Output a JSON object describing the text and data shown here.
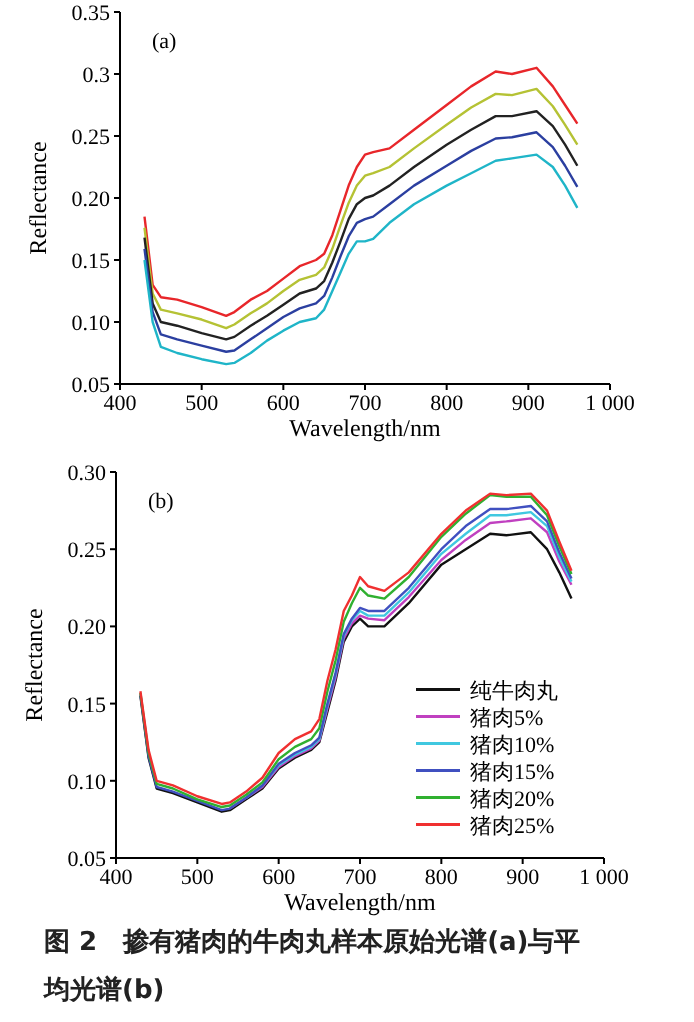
{
  "chart_data": [
    {
      "type": "line",
      "title": "(a)",
      "xlabel": "Wavelength/nm",
      "ylabel": "Reflectance",
      "xlim": [
        400,
        1000
      ],
      "ylim": [
        0.05,
        0.35
      ],
      "xticks": [
        400,
        500,
        600,
        700,
        800,
        900,
        {
          "value": 1000,
          "label": "1 000"
        }
      ],
      "yticks": [
        0.05,
        {
          "value": 0.1,
          "label": "0.10"
        },
        0.15,
        {
          "value": 0.2,
          "label": "0.20"
        },
        0.25,
        0.3,
        0.35
      ],
      "x": [
        430,
        440,
        450,
        470,
        500,
        530,
        540,
        560,
        580,
        600,
        620,
        640,
        650,
        660,
        670,
        680,
        690,
        700,
        710,
        730,
        760,
        800,
        830,
        860,
        880,
        910,
        930,
        945,
        960
      ],
      "series": [
        {
          "color": "#e8262a",
          "values": [
            0.185,
            0.13,
            0.12,
            0.118,
            0.112,
            0.105,
            0.108,
            0.118,
            0.125,
            0.135,
            0.145,
            0.15,
            0.155,
            0.17,
            0.19,
            0.21,
            0.225,
            0.235,
            0.237,
            0.24,
            0.255,
            0.275,
            0.29,
            0.302,
            0.3,
            0.305,
            0.29,
            0.275,
            0.26
          ]
        },
        {
          "color": "#b5c234",
          "values": [
            0.176,
            0.123,
            0.11,
            0.107,
            0.102,
            0.095,
            0.098,
            0.107,
            0.115,
            0.125,
            0.134,
            0.138,
            0.144,
            0.159,
            0.178,
            0.196,
            0.21,
            0.218,
            0.22,
            0.225,
            0.24,
            0.259,
            0.273,
            0.284,
            0.283,
            0.288,
            0.274,
            0.259,
            0.243
          ]
        },
        {
          "color": "#222222",
          "values": [
            0.168,
            0.115,
            0.1,
            0.097,
            0.091,
            0.086,
            0.088,
            0.097,
            0.105,
            0.114,
            0.123,
            0.127,
            0.133,
            0.148,
            0.165,
            0.183,
            0.195,
            0.2,
            0.202,
            0.21,
            0.225,
            0.243,
            0.255,
            0.266,
            0.266,
            0.27,
            0.258,
            0.243,
            0.226
          ]
        },
        {
          "color": "#2b3fa0",
          "values": [
            0.159,
            0.108,
            0.09,
            0.086,
            0.081,
            0.076,
            0.077,
            0.086,
            0.095,
            0.104,
            0.111,
            0.115,
            0.121,
            0.136,
            0.153,
            0.169,
            0.18,
            0.183,
            0.185,
            0.195,
            0.21,
            0.226,
            0.238,
            0.248,
            0.249,
            0.253,
            0.241,
            0.226,
            0.209
          ]
        },
        {
          "color": "#1fb5c8",
          "values": [
            0.15,
            0.1,
            0.08,
            0.075,
            0.07,
            0.066,
            0.067,
            0.075,
            0.085,
            0.093,
            0.1,
            0.103,
            0.11,
            0.125,
            0.14,
            0.155,
            0.165,
            0.165,
            0.167,
            0.18,
            0.195,
            0.21,
            0.22,
            0.23,
            0.232,
            0.235,
            0.225,
            0.21,
            0.192
          ]
        }
      ]
    },
    {
      "type": "line",
      "title": "(b)",
      "xlabel": "Wavelength/nm",
      "ylabel": "Reflectance",
      "xlim": [
        400,
        1000
      ],
      "ylim": [
        0.05,
        0.3
      ],
      "legend": "bottom right",
      "xticks": [
        400,
        500,
        600,
        700,
        800,
        900,
        {
          "value": 1000,
          "label": "1 000"
        }
      ],
      "yticks": [
        0.05,
        {
          "value": 0.1,
          "label": "0.10"
        },
        0.15,
        {
          "value": 0.2,
          "label": "0.20"
        },
        0.25,
        {
          "value": 0.3,
          "label": "0.30"
        }
      ],
      "x": [
        430,
        440,
        450,
        470,
        500,
        530,
        540,
        560,
        580,
        600,
        620,
        640,
        650,
        660,
        670,
        680,
        690,
        700,
        710,
        730,
        760,
        800,
        830,
        860,
        880,
        910,
        930,
        945,
        960
      ],
      "series": [
        {
          "name": "纯牛肉丸",
          "color": "#111111",
          "values": [
            0.155,
            0.115,
            0.095,
            0.092,
            0.086,
            0.08,
            0.081,
            0.088,
            0.095,
            0.108,
            0.115,
            0.12,
            0.125,
            0.145,
            0.165,
            0.19,
            0.2,
            0.205,
            0.2,
            0.2,
            0.215,
            0.24,
            0.25,
            0.26,
            0.259,
            0.261,
            0.25,
            0.235,
            0.218
          ]
        },
        {
          "name": "猪肉5%",
          "color": "#c040c0",
          "values": [
            null,
            null,
            null,
            null,
            null,
            null,
            0.082,
            0.089,
            0.096,
            0.109,
            0.116,
            0.121,
            0.126,
            0.147,
            0.167,
            0.192,
            0.202,
            0.207,
            0.205,
            0.204,
            0.219,
            0.243,
            0.256,
            0.267,
            0.268,
            0.27,
            0.261,
            0.242,
            0.227
          ]
        },
        {
          "name": "猪肉10%",
          "color": "#40c8e0",
          "values": [
            null,
            null,
            null,
            null,
            null,
            null,
            null,
            0.089,
            0.097,
            0.11,
            0.117,
            0.122,
            0.127,
            0.149,
            0.169,
            0.194,
            0.204,
            0.21,
            0.207,
            0.207,
            0.222,
            0.247,
            0.26,
            0.272,
            0.272,
            0.274,
            0.265,
            0.245,
            0.229
          ]
        },
        {
          "name": "猪肉15%",
          "color": "#4050c0",
          "values": [
            0.156,
            0.116,
            0.096,
            0.093,
            0.087,
            0.081,
            0.082,
            0.089,
            0.097,
            0.111,
            0.118,
            0.123,
            0.128,
            0.15,
            0.17,
            0.195,
            0.205,
            0.212,
            0.21,
            0.21,
            0.225,
            0.25,
            0.265,
            0.276,
            0.276,
            0.278,
            0.268,
            0.248,
            0.231
          ]
        },
        {
          "name": "猪肉20%",
          "color": "#30b030",
          "values": [
            0.157,
            0.118,
            0.098,
            0.095,
            0.088,
            0.083,
            0.084,
            0.091,
            0.099,
            0.114,
            0.122,
            0.127,
            0.134,
            0.158,
            0.178,
            0.203,
            0.215,
            0.225,
            0.22,
            0.218,
            0.232,
            0.258,
            0.273,
            0.285,
            0.284,
            0.284,
            0.272,
            0.252,
            0.234
          ]
        },
        {
          "name": "猪肉25%",
          "color": "#f03030",
          "values": [
            0.158,
            0.12,
            0.1,
            0.097,
            0.09,
            0.085,
            0.086,
            0.093,
            0.102,
            0.118,
            0.127,
            0.132,
            0.14,
            0.165,
            0.185,
            0.21,
            0.22,
            0.232,
            0.226,
            0.223,
            0.235,
            0.26,
            0.275,
            0.286,
            0.285,
            0.286,
            0.275,
            0.255,
            0.236
          ]
        }
      ],
      "annotations": [
        "**图 2　掺有猪肉的牛肉丸样本原始光谱(a)与平均光谱(b)**"
      ]
    }
  ]
}
